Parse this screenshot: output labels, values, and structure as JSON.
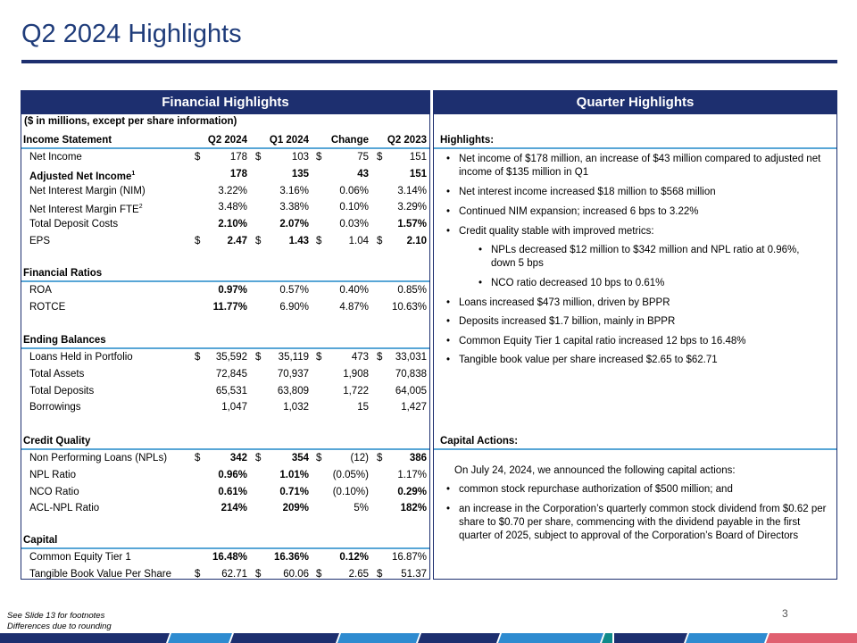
{
  "title": "Q2 2024 Highlights",
  "left_panel": {
    "heading": "Financial Highlights",
    "units": "($ in millions, except per share information)",
    "header": {
      "label": "Income Statement",
      "cols": [
        "Q2 2024",
        "Q1 2024",
        "Change",
        "Q2 2023"
      ]
    },
    "income_rows": [
      {
        "label": "Net Income",
        "d": [
          "$",
          "$",
          "$",
          "$"
        ],
        "v": [
          "178",
          "103",
          "75",
          "151"
        ]
      },
      {
        "label": "Adjusted Net Income",
        "sup": "1",
        "bold": true,
        "v": [
          "178",
          "135",
          "43",
          "151"
        ]
      },
      {
        "label": "Net Interest Margin (NIM)",
        "v": [
          "3.22%",
          "3.16%",
          "0.06%",
          "3.14%"
        ]
      },
      {
        "label": "Net Interest Margin FTE",
        "sup": "2",
        "v": [
          "3.48%",
          "3.38%",
          "0.10%",
          "3.29%"
        ]
      },
      {
        "label": "Total Deposit Costs",
        "v": [
          "2.10%",
          "2.07%",
          "0.03%",
          "1.57%"
        ]
      },
      {
        "label": "EPS",
        "d": [
          "$",
          "$",
          "$",
          "$"
        ],
        "v": [
          "2.47",
          "1.43",
          "1.04",
          "2.10"
        ]
      }
    ],
    "ratios_title": "Financial Ratios",
    "ratio_rows": [
      {
        "label": "ROA",
        "v": [
          "0.97%",
          "0.57%",
          "0.40%",
          "0.85%"
        ]
      },
      {
        "label": "ROTCE",
        "v": [
          "11.77%",
          "6.90%",
          "4.87%",
          "10.63%"
        ]
      }
    ],
    "balances_title": "Ending Balances",
    "balance_rows": [
      {
        "label": "Loans Held in Portfolio",
        "d": [
          "$",
          "$",
          "$",
          "$"
        ],
        "v": [
          "35,592",
          "35,119",
          "473",
          "33,031"
        ]
      },
      {
        "label": "Total Assets",
        "v": [
          "72,845",
          "70,937",
          "1,908",
          "70,838"
        ]
      },
      {
        "label": "Total Deposits",
        "v": [
          "65,531",
          "63,809",
          "1,722",
          "64,005"
        ]
      },
      {
        "label": "Borrowings",
        "v": [
          "1,047",
          "1,032",
          "15",
          "1,427"
        ]
      }
    ],
    "credit_title": "Credit Quality",
    "credit_rows": [
      {
        "label": "Non Performing Loans (NPLs)",
        "d": [
          "$",
          "$",
          "$",
          "$"
        ],
        "v": [
          "342",
          "354",
          "(12)",
          "386"
        ]
      },
      {
        "label": "NPL Ratio",
        "v": [
          "0.96%",
          "1.01%",
          "(0.05%)",
          "1.17%"
        ]
      },
      {
        "label": "NCO Ratio",
        "v": [
          "0.61%",
          "0.71%",
          "(0.10%)",
          "0.29%"
        ]
      },
      {
        "label": "ACL-NPL Ratio",
        "v": [
          "214%",
          "209%",
          "5%",
          "182%"
        ]
      }
    ],
    "capital_title": "Capital",
    "capital_rows": [
      {
        "label": "Common Equity Tier 1",
        "v": [
          "16.48%",
          "16.36%",
          "0.12%",
          "16.87%"
        ]
      },
      {
        "label": "Tangible Book Value Per Share",
        "d": [
          "$",
          "$",
          "$",
          "$"
        ],
        "v": [
          "62.71",
          "60.06",
          "2.65",
          "51.37"
        ]
      }
    ]
  },
  "right_panel": {
    "heading": "Quarter Highlights",
    "highlights_title": "Highlights:",
    "bullets": [
      "Net income of $178 million, an increase of $43 million compared to adjusted net income of $135 million in Q1",
      "Net interest income increased $18 million to $568 million",
      "Continued NIM expansion; increased 6 bps to 3.22%",
      "Credit quality stable with improved metrics:",
      "NPLs decreased $12 million to $342 million and NPL ratio at 0.96%, down 5 bps",
      "NCO ratio decreased 10 bps to 0.61%",
      "Loans increased $473 million, driven by BPPR",
      "Deposits increased $1.7 billion, mainly in BPPR",
      "Common Equity Tier 1 capital ratio increased 12 bps to 16.48%",
      "Tangible book value per share increased $2.65 to $62.71"
    ],
    "capital_title": "Capital Actions:",
    "capital_intro": "On July 24, 2024, we announced the following capital actions:",
    "capital_bullets": [
      "common stock repurchase authorization of $500 million; and",
      "an increase in the Corporation’s quarterly common stock dividend from $0.62 per share to $0.70 per share, commencing with the dividend payable in the first quarter of 2025, subject to approval of the Corporation’s Board of Directors"
    ]
  },
  "footnotes": [
    "See Slide 13 for footnotes",
    "Differences due to rounding"
  ],
  "page_number": "3",
  "colors": {
    "navy": "#1d2f6f",
    "title": "#1f3c7a",
    "rule": "#58a6d6"
  }
}
